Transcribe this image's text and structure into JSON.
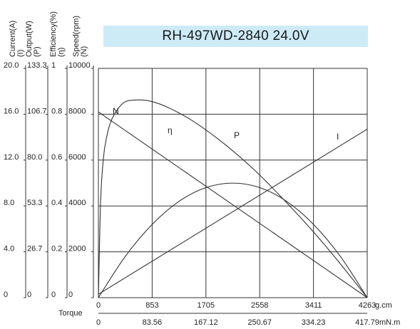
{
  "chart_data": {
    "type": "line",
    "title": "RH-497WD-2840  24.0V",
    "axes": {
      "current": {
        "label": "Current(A)",
        "symbol": "(I)",
        "range": [
          0,
          20
        ],
        "ticks": [
          "20.0",
          "16.0",
          "12.0",
          "8.0",
          "4.0",
          "0"
        ]
      },
      "output": {
        "label": "Output(W)",
        "symbol": "(P)",
        "range": [
          0,
          133.3
        ],
        "ticks": [
          "133.3",
          "106.7",
          "80.0",
          "53.3",
          "26.7",
          "0"
        ]
      },
      "efficiency": {
        "label": "Efficiency(%)",
        "symbol": "(η)",
        "range": [
          0,
          1
        ],
        "ticks": [
          "1",
          "0.8",
          "0.6",
          "0.4",
          "0.2",
          "0"
        ]
      },
      "speed": {
        "label": "Speed(rpm)",
        "symbol": "(N)",
        "range": [
          0,
          10000
        ],
        "ticks": [
          "10000",
          "8000",
          "6000",
          "4000",
          "2000",
          "0"
        ]
      }
    },
    "x_gcm": {
      "unit": "g.cm",
      "range": [
        0,
        4263
      ],
      "ticks": [
        "0",
        "853",
        "1705",
        "2558",
        "3411",
        "4263"
      ]
    },
    "x_mNm": {
      "label": "Torque",
      "unit": "mN.m",
      "range": [
        0,
        417.79
      ],
      "ticks": [
        "0",
        "83.56",
        "167.12",
        "250.67",
        "334.23",
        "417.79"
      ]
    },
    "grid": true,
    "series": [
      {
        "name": "N",
        "axis": "speed",
        "x": [
          0,
          4263
        ],
        "values": [
          8100,
          0
        ]
      },
      {
        "name": "I",
        "axis": "current",
        "x": [
          0,
          4263
        ],
        "values": [
          0.3,
          14.7
        ]
      },
      {
        "name": "P",
        "axis": "output",
        "x": [
          0,
          426,
          853,
          1279,
          1705,
          2132,
          2558,
          2984,
          3411,
          3837,
          4263
        ],
        "values": [
          0,
          24.0,
          42.6,
          56.0,
          64.0,
          66.6,
          64.0,
          56.0,
          42.6,
          24.0,
          0
        ]
      },
      {
        "name": "η",
        "axis": "efficiency",
        "x": [
          0,
          35,
          80,
          130,
          200,
          300,
          400,
          500,
          700,
          853,
          1100,
          1500,
          2000,
          2500,
          3000,
          3400,
          3800,
          4263
        ],
        "values": [
          0,
          0.42,
          0.61,
          0.7,
          0.77,
          0.82,
          0.85,
          0.86,
          0.862,
          0.855,
          0.83,
          0.77,
          0.67,
          0.55,
          0.41,
          0.29,
          0.16,
          0
        ]
      }
    ]
  }
}
